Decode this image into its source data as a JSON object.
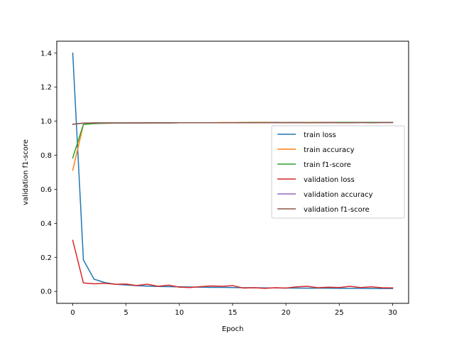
{
  "chart_data": {
    "type": "line",
    "title": "",
    "xlabel": "Epoch",
    "ylabel": "validation f1-score",
    "xlim": [
      -1.5,
      31.5
    ],
    "ylim": [
      -0.07,
      1.47
    ],
    "xticks": [
      0,
      5,
      10,
      15,
      20,
      25,
      30
    ],
    "yticks": [
      0.0,
      0.2,
      0.4,
      0.6,
      0.8,
      1.0,
      1.2,
      1.4
    ],
    "grid": false,
    "legend_position": "center-right",
    "x": [
      0,
      1,
      2,
      3,
      4,
      5,
      6,
      7,
      8,
      9,
      10,
      11,
      12,
      13,
      14,
      15,
      16,
      17,
      18,
      19,
      20,
      21,
      22,
      23,
      24,
      25,
      26,
      27,
      28,
      29,
      30
    ],
    "series": [
      {
        "name": "train loss",
        "color": "#1f77b4",
        "values": [
          1.4,
          0.185,
          0.072,
          0.052,
          0.042,
          0.038,
          0.034,
          0.031,
          0.029,
          0.028,
          0.027,
          0.026,
          0.025,
          0.024,
          0.024,
          0.023,
          0.022,
          0.022,
          0.021,
          0.021,
          0.02,
          0.02,
          0.019,
          0.019,
          0.019,
          0.018,
          0.018,
          0.018,
          0.017,
          0.017,
          0.017
        ]
      },
      {
        "name": "train accuracy",
        "color": "#ff7f0e",
        "values": [
          0.712,
          0.981,
          0.986,
          0.988,
          0.989,
          0.989,
          0.99,
          0.99,
          0.99,
          0.991,
          0.991,
          0.991,
          0.991,
          0.991,
          0.992,
          0.992,
          0.992,
          0.993,
          0.993,
          0.992,
          0.992,
          0.992,
          0.992,
          0.993,
          0.993,
          0.993,
          0.993,
          0.993,
          0.993,
          0.993,
          0.993
        ]
      },
      {
        "name": "train f1-score",
        "color": "#2ca02c",
        "values": [
          0.785,
          0.981,
          0.986,
          0.988,
          0.989,
          0.989,
          0.99,
          0.99,
          0.99,
          0.99,
          0.991,
          0.991,
          0.991,
          0.991,
          0.991,
          0.991,
          0.992,
          0.992,
          0.992,
          0.992,
          0.992,
          0.992,
          0.992,
          0.992,
          0.992,
          0.993,
          0.993,
          0.993,
          0.993,
          0.993,
          0.993
        ]
      },
      {
        "name": "validation loss",
        "color": "#d62728",
        "values": [
          0.3,
          0.05,
          0.045,
          0.048,
          0.042,
          0.043,
          0.035,
          0.042,
          0.03,
          0.037,
          0.025,
          0.023,
          0.028,
          0.032,
          0.03,
          0.034,
          0.02,
          0.022,
          0.018,
          0.022,
          0.02,
          0.027,
          0.03,
          0.022,
          0.025,
          0.023,
          0.03,
          0.023,
          0.027,
          0.022,
          0.021
        ]
      },
      {
        "name": "validation accuracy",
        "color": "#9467bd",
        "values": [
          0.982,
          0.989,
          0.99,
          0.99,
          0.99,
          0.99,
          0.99,
          0.99,
          0.991,
          0.99,
          0.991,
          0.991,
          0.991,
          0.991,
          0.991,
          0.991,
          0.991,
          0.991,
          0.991,
          0.992,
          0.991,
          0.992,
          0.991,
          0.991,
          0.992,
          0.991,
          0.991,
          0.992,
          0.991,
          0.992,
          0.992
        ]
      },
      {
        "name": "validation f1-score",
        "color": "#8c564b",
        "values": [
          0.982,
          0.989,
          0.99,
          0.99,
          0.99,
          0.99,
          0.99,
          0.99,
          0.991,
          0.99,
          0.991,
          0.991,
          0.991,
          0.991,
          0.991,
          0.991,
          0.991,
          0.991,
          0.991,
          0.992,
          0.991,
          0.992,
          0.991,
          0.991,
          0.992,
          0.991,
          0.991,
          0.992,
          0.991,
          0.992,
          0.992
        ]
      }
    ]
  }
}
